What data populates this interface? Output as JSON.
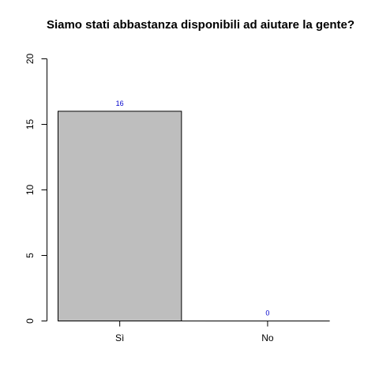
{
  "chart_data": {
    "type": "bar",
    "title": "Siamo stati abbastanza disponibili ad aiutare la gente?",
    "xlabel": "",
    "ylabel": "",
    "categories": [
      "Sì",
      "No"
    ],
    "values": [
      16,
      0
    ],
    "data_labels": [
      "16",
      "0"
    ],
    "ylim": [
      0,
      20
    ],
    "yticks": [
      0,
      5,
      10,
      15,
      20
    ],
    "grid": false,
    "legend": "none"
  },
  "colors": {
    "bar_fill": "#bebebe",
    "bar_stroke": "#000000",
    "data_label": "#0000cc",
    "axis": "#000000"
  }
}
